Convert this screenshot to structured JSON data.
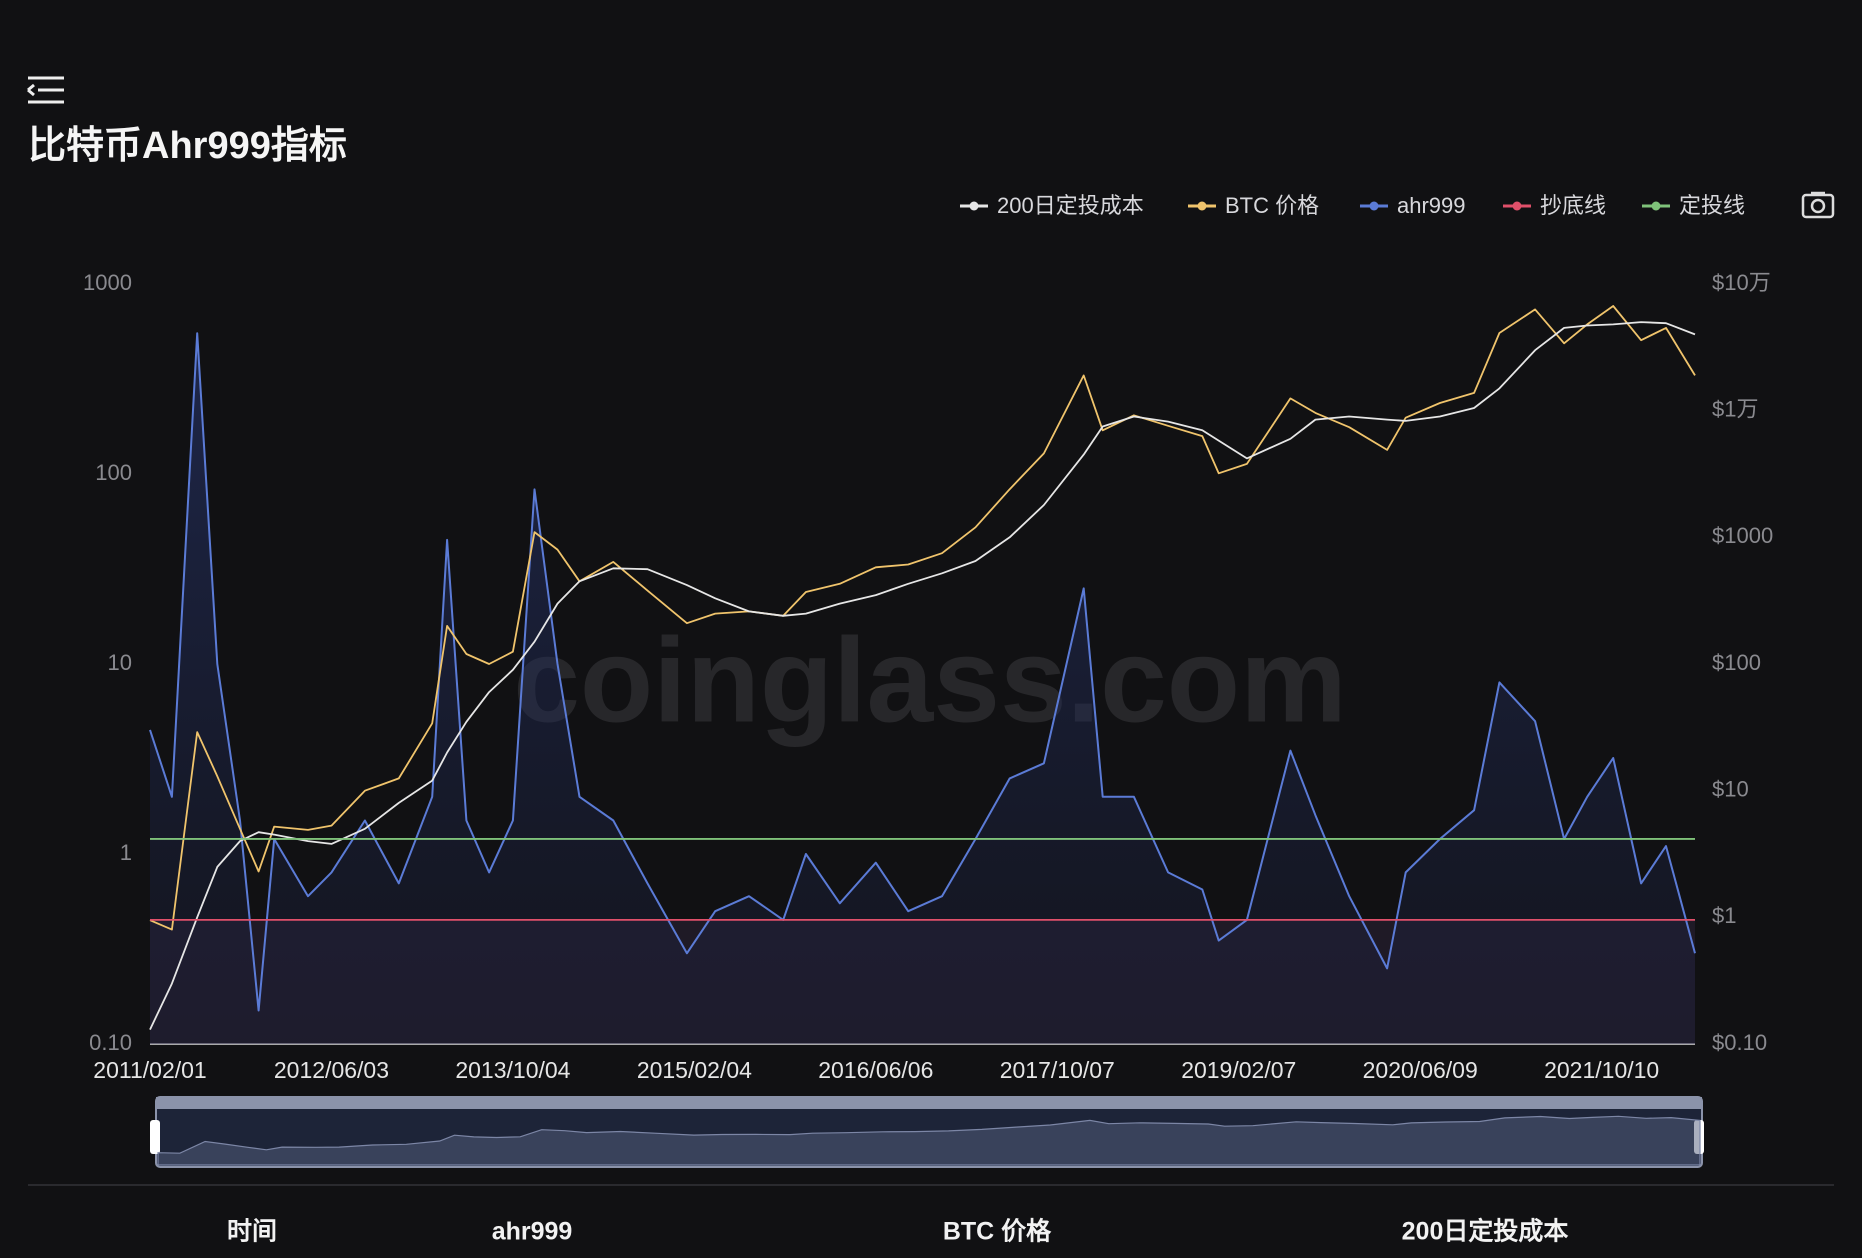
{
  "title": "比特币Ahr999指标",
  "watermark": "coinglass.com",
  "table_headers": [
    "时间",
    "ahr999",
    "BTC 价格",
    "200日定投成本"
  ],
  "chart_data": {
    "type": "line",
    "log_scale": true,
    "grid": false,
    "legend_position": "top-right",
    "x": [
      "2011/02/01",
      "2011/04/01",
      "2011/06/08",
      "2011/08/01",
      "2011/10/01",
      "2011/11/20",
      "2012/01/01",
      "2012/04/01",
      "2012/06/03",
      "2012/09/01",
      "2012/12/01",
      "2013/03/01",
      "2013/04/10",
      "2013/06/01",
      "2013/08/01",
      "2013/10/04",
      "2013/12/01",
      "2014/02/01",
      "2014/04/01",
      "2014/07/01",
      "2014/10/01",
      "2015/01/15",
      "2015/04/01",
      "2015/07/01",
      "2015/10/01",
      "2015/12/01",
      "2016/03/01",
      "2016/06/06",
      "2016/09/01",
      "2016/12/01",
      "2017/03/01",
      "2017/06/01",
      "2017/09/01",
      "2017/12/17",
      "2018/02/06",
      "2018/05/01",
      "2018/08/01",
      "2018/11/01",
      "2018/12/15",
      "2019/03/01",
      "2019/06/26",
      "2019/09/01",
      "2019/12/01",
      "2020/03/12",
      "2020/05/01",
      "2020/08/01",
      "2020/11/01",
      "2021/01/08",
      "2021/04/14",
      "2021/07/01",
      "2021/09/01",
      "2021/11/10",
      "2022/01/24",
      "2022/04/01",
      "2022/06/18"
    ],
    "xlim": [
      "2011/02/01",
      "2022/06/18"
    ],
    "xticks": [
      "2011/02/01",
      "2012/06/03",
      "2013/10/04",
      "2015/02/04",
      "2016/06/06",
      "2017/10/07",
      "2019/02/07",
      "2020/06/09",
      "2021/10/10"
    ],
    "ylim": [
      0.1,
      1000
    ],
    "yticks": [
      {
        "value": 0.1,
        "label": "0.10"
      },
      1,
      10,
      100,
      1000
    ],
    "y2lim": [
      0.1,
      100000
    ],
    "y2ticks": [
      {
        "value": 0.1,
        "label": "$0.10"
      },
      {
        "value": 1,
        "label": "$1"
      },
      {
        "value": 10,
        "label": "$10"
      },
      {
        "value": 100,
        "label": "$100"
      },
      {
        "value": 1000,
        "label": "$1000"
      },
      {
        "value": 10000,
        "label": "$1万"
      },
      {
        "value": 100000,
        "label": "$10万"
      }
    ],
    "series": [
      {
        "name": "200日定投成本",
        "color": "#e6e6e6",
        "axis": "y2",
        "values": [
          0.13,
          0.3,
          1.0,
          2.5,
          4.0,
          4.7,
          4.5,
          4.0,
          3.8,
          5,
          8,
          12,
          20,
          35,
          60,
          90,
          150,
          300,
          450,
          570,
          560,
          420,
          330,
          260,
          240,
          250,
          300,
          350,
          430,
          520,
          650,
          1000,
          1800,
          4500,
          7500,
          9000,
          8200,
          7000,
          5800,
          4200,
          6000,
          8500,
          9000,
          8500,
          8300,
          9000,
          10500,
          15000,
          30000,
          45000,
          47000,
          48000,
          50000,
          49000,
          40000
        ]
      },
      {
        "name": "BTC 价格",
        "color": "#f0c46c",
        "axis": "y2",
        "values": [
          0.95,
          0.8,
          29,
          13,
          5,
          2.3,
          5.2,
          4.9,
          5.3,
          10,
          12.5,
          34,
          200,
          120,
          100,
          125,
          1100,
          800,
          450,
          640,
          380,
          210,
          250,
          260,
          240,
          370,
          430,
          580,
          610,
          750,
          1200,
          2400,
          4600,
          19000,
          7000,
          9200,
          7600,
          6300,
          3200,
          3800,
          12500,
          9600,
          7400,
          4900,
          8800,
          11500,
          13800,
          41000,
          63000,
          34000,
          48000,
          67000,
          36000,
          45000,
          19000
        ]
      },
      {
        "name": "ahr999",
        "color": "#5b7bd6",
        "values": [
          4.5,
          2,
          550,
          10,
          1.5,
          0.15,
          1.2,
          0.6,
          0.8,
          1.5,
          0.7,
          2,
          45,
          1.5,
          0.8,
          1.5,
          83,
          10,
          2,
          1.5,
          0.7,
          0.3,
          0.5,
          0.6,
          0.45,
          1.0,
          0.55,
          0.9,
          0.5,
          0.6,
          1.2,
          2.5,
          3,
          25,
          2,
          2,
          0.8,
          0.65,
          0.35,
          0.45,
          3.5,
          1.6,
          0.6,
          0.25,
          0.8,
          1.2,
          1.7,
          8,
          5,
          1.2,
          2,
          3.2,
          0.7,
          1.1,
          0.3
        ]
      }
    ],
    "reference_lines": [
      {
        "name": "抄底线",
        "color": "#e0506a",
        "value": 0.45
      },
      {
        "name": "定投线",
        "color": "#7fc27a",
        "value": 1.2
      }
    ]
  }
}
